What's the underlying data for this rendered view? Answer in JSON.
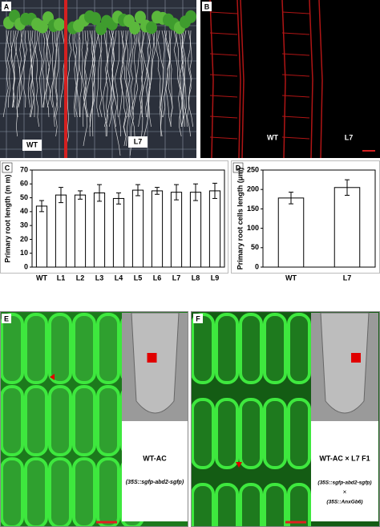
{
  "panels": {
    "a": {
      "label": "A",
      "texts": [
        "WT",
        "L7"
      ]
    },
    "b": {
      "label": "B",
      "texts": [
        "WT",
        "L7"
      ]
    },
    "e": {
      "label": "E",
      "title": "WT-AC",
      "construct": "(35S::sgfp-abd2-sgfp)"
    },
    "f": {
      "label": "F",
      "title": "WT-AC × L7 F1",
      "construct": "(35S::sgfp-abd2-sgfp)",
      "cross": "×",
      "construct2": "(35S::AnxGb6)"
    }
  },
  "chart_data": [
    {
      "type": "bar",
      "panel_label": "C",
      "ylabel": "Primary  root  length  (m m)",
      "categories": [
        "WT",
        "L1",
        "L2",
        "L3",
        "L4",
        "L5",
        "L6",
        "L7",
        "L8",
        "L9"
      ],
      "series": [
        {
          "color": "#ffffff",
          "values": [
            44,
            52,
            52,
            53.5,
            49.5,
            55.5,
            55,
            54,
            54,
            55
          ],
          "errors": [
            4,
            5.5,
            3,
            6,
            4,
            4,
            2.5,
            5.5,
            6,
            5.5
          ]
        }
      ],
      "ylim": [
        0,
        70
      ],
      "yticks": [
        0,
        10,
        20,
        30,
        40,
        50,
        60,
        70
      ]
    },
    {
      "type": "bar",
      "panel_label": "D",
      "ylabel": "Primary  root cells  length  (μm)",
      "categories": [
        "WT",
        "L7"
      ],
      "series": [
        {
          "color": "#ffffff",
          "values": [
            178,
            205
          ],
          "errors": [
            15,
            20
          ]
        }
      ],
      "ylim": [
        0,
        250
      ],
      "yticks": [
        0,
        50,
        100,
        150,
        200,
        250
      ]
    }
  ]
}
